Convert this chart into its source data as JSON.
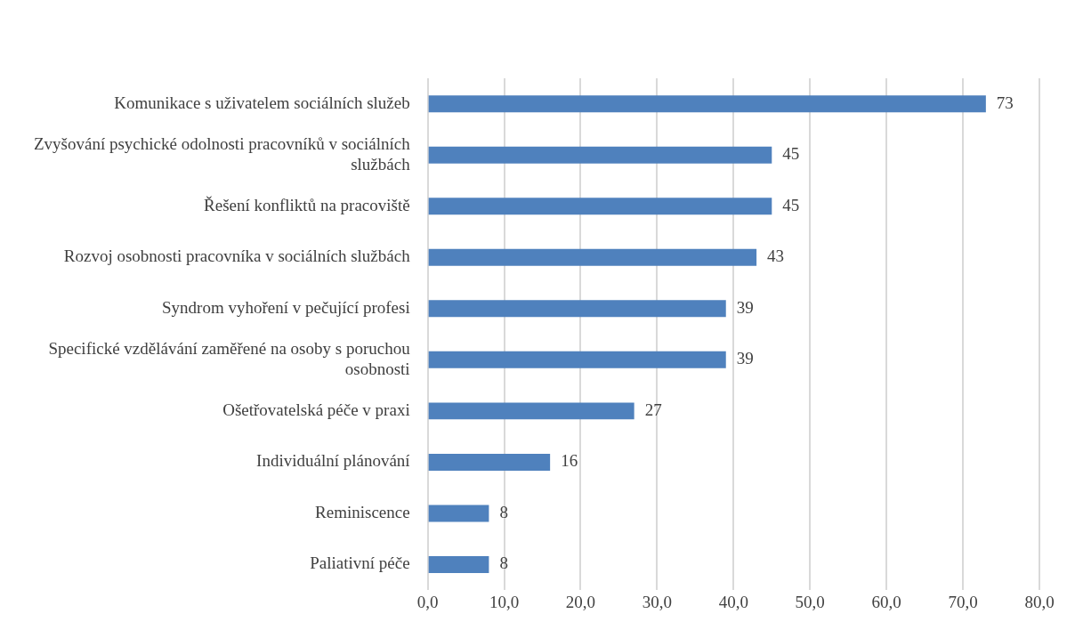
{
  "chart_data": {
    "type": "bar",
    "orientation": "horizontal",
    "categories": [
      "Komunikace s uživatelem sociálních služeb",
      "Zvyšování psychické odolnosti pracovníků v sociálních službách",
      "Řešení konfliktů na pracoviště",
      "Rozvoj osobnosti pracovníka v sociálních službách",
      "Syndrom vyhoření v pečující profesi",
      "Specifické vzdělávání zaměřené na osoby s poruchou osobnosti",
      "Ošetřovatelská péče v praxi",
      "Individuální plánování",
      "Reminiscence",
      "Paliativní péče"
    ],
    "values": [
      73,
      45,
      45,
      43,
      39,
      39,
      27,
      16,
      8,
      8
    ],
    "color": "#4f81bd",
    "data_labels": true,
    "xlim": [
      0,
      80
    ],
    "xticks": [
      {
        "value": 0,
        "label": "0,0"
      },
      {
        "value": 10,
        "label": "10,0"
      },
      {
        "value": 20,
        "label": "20,0"
      },
      {
        "value": 30,
        "label": "30,0"
      },
      {
        "value": 40,
        "label": "40,0"
      },
      {
        "value": 50,
        "label": "50,0"
      },
      {
        "value": 60,
        "label": "60,0"
      },
      {
        "value": 70,
        "label": "70,0"
      },
      {
        "value": 80,
        "label": "80,0"
      }
    ],
    "grid": "x",
    "legend": false
  }
}
